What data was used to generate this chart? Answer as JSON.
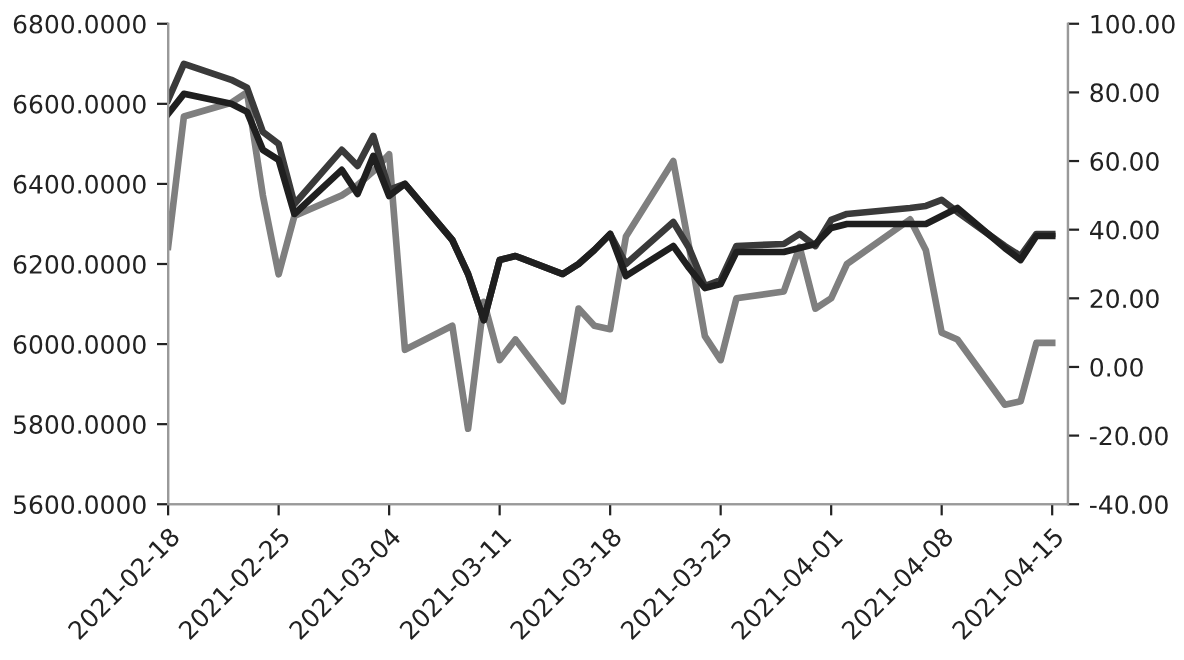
{
  "chart_data": {
    "type": "line",
    "x": [
      "2021-02-18",
      "2021-02-19",
      "2021-02-22",
      "2021-02-23",
      "2021-02-24",
      "2021-02-25",
      "2021-02-26",
      "2021-03-01",
      "2021-03-02",
      "2021-03-03",
      "2021-03-04",
      "2021-03-05",
      "2021-03-08",
      "2021-03-09",
      "2021-03-10",
      "2021-03-11",
      "2021-03-12",
      "2021-03-15",
      "2021-03-16",
      "2021-03-17",
      "2021-03-18",
      "2021-03-19",
      "2021-03-22",
      "2021-03-23",
      "2021-03-24",
      "2021-03-25",
      "2021-03-26",
      "2021-03-29",
      "2021-03-30",
      "2021-03-31",
      "2021-04-01",
      "2021-04-02",
      "2021-04-06",
      "2021-04-07",
      "2021-04-08",
      "2021-04-09",
      "2021-04-12",
      "2021-04-13",
      "2021-04-14",
      "2021-04-15"
    ],
    "series": [
      {
        "color": "#7f7f7f",
        "axis": "y2",
        "values": [
          35,
          73,
          77,
          80,
          50,
          27,
          44,
          50,
          53,
          57,
          62,
          5,
          12,
          -18,
          19,
          2,
          8,
          -10,
          17,
          12,
          11,
          38,
          60,
          35,
          9,
          2,
          20,
          22,
          35,
          17,
          20,
          30,
          43,
          34,
          10,
          8,
          -11,
          -10,
          7,
          7
        ]
      },
      {
        "color": "#3a3a3a",
        "values": [
          6610,
          6700,
          6660,
          6640,
          6530,
          6500,
          6350,
          6485,
          6445,
          6520,
          6385,
          6400,
          6260,
          6175,
          6060,
          6210,
          6220,
          6175,
          6200,
          6235,
          6275,
          6200,
          6305,
          6240,
          6145,
          6160,
          6245,
          6250,
          6275,
          6245,
          6310,
          6325,
          6340,
          6345,
          6360,
          6330,
          6245,
          6220,
          6275,
          6275
        ]
      },
      {
        "color": "#1f1f1f",
        "values": [
          6575,
          6625,
          6600,
          6580,
          6485,
          6460,
          6325,
          6435,
          6375,
          6470,
          6370,
          6400,
          6260,
          6175,
          6060,
          6210,
          6220,
          6175,
          6200,
          6235,
          6275,
          6170,
          6245,
          6190,
          6140,
          6150,
          6230,
          6230,
          6240,
          6250,
          6290,
          6300,
          6300,
          6300,
          6320,
          6340,
          6240,
          6210,
          6270,
          6270
        ]
      }
    ],
    "xlim": [
      "2021-02-18",
      "2021-04-16"
    ],
    "xticks": [
      "2021-02-18",
      "2021-02-25",
      "2021-03-04",
      "2021-03-11",
      "2021-03-18",
      "2021-03-25",
      "2021-04-01",
      "2021-04-08",
      "2021-04-15"
    ],
    "ylim": [
      5600,
      6800
    ],
    "yticks": [
      {
        "value": 5600,
        "label": "5600.0000"
      },
      {
        "value": 5800,
        "label": "5800.0000"
      },
      {
        "value": 6000,
        "label": "6000.0000"
      },
      {
        "value": 6200,
        "label": "6200.0000"
      },
      {
        "value": 6400,
        "label": "6400.0000"
      },
      {
        "value": 6600,
        "label": "6600.0000"
      },
      {
        "value": 6800,
        "label": "6800.0000"
      }
    ],
    "y2lim": [
      -40,
      100
    ],
    "y2ticks": [
      {
        "value": -40,
        "label": "-40.00"
      },
      {
        "value": -20,
        "label": "-20.00"
      },
      {
        "value": 0,
        "label": "0.00"
      },
      {
        "value": 20,
        "label": "20.00"
      },
      {
        "value": 40,
        "label": "40.00"
      },
      {
        "value": 60,
        "label": "60.00"
      },
      {
        "value": 80,
        "label": "80.00"
      },
      {
        "value": 100,
        "label": "100.00"
      }
    ],
    "marker": "none",
    "line_style": "solid"
  }
}
